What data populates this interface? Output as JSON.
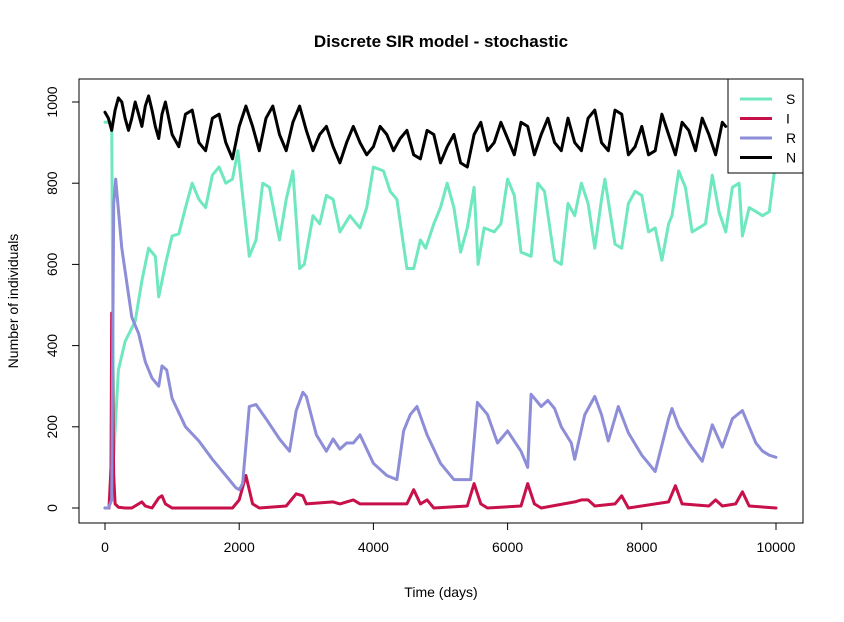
{
  "chart_data": {
    "type": "line",
    "title": "Discrete SIR model - stochastic",
    "xlabel": "Time (days)",
    "ylabel": "Number of individuals",
    "xlim": [
      0,
      10000
    ],
    "ylim": [
      0,
      1000
    ],
    "x_ticks": [
      "0",
      "2000",
      "4000",
      "6000",
      "8000",
      "10000"
    ],
    "y_ticks": [
      "0",
      "200",
      "400",
      "600",
      "800",
      "1000"
    ],
    "grid": false,
    "legend_position": "top-right",
    "series": [
      {
        "name": "S",
        "color": "#6FE8C0",
        "x": [
          0,
          100,
          130,
          200,
          300,
          450,
          550,
          650,
          750,
          800,
          900,
          1000,
          1100,
          1200,
          1300,
          1400,
          1500,
          1600,
          1700,
          1800,
          1900,
          1980,
          2050,
          2150,
          2250,
          2350,
          2450,
          2600,
          2700,
          2800,
          2900,
          2970,
          3100,
          3200,
          3300,
          3400,
          3500,
          3650,
          3800,
          3900,
          4000,
          4150,
          4250,
          4350,
          4500,
          4600,
          4700,
          4780,
          4900,
          5000,
          5100,
          5200,
          5300,
          5400,
          5500,
          5560,
          5650,
          5800,
          5900,
          6000,
          6100,
          6200,
          6350,
          6450,
          6550,
          6700,
          6800,
          6900,
          7000,
          7100,
          7200,
          7300,
          7400,
          7450,
          7600,
          7700,
          7800,
          7900,
          8000,
          8100,
          8200,
          8300,
          8400,
          8450,
          8550,
          8650,
          8750,
          8850,
          8950,
          9050,
          9150,
          9250,
          9350,
          9450,
          9500,
          9600,
          9700,
          9800,
          9900,
          10000
        ],
        "values": [
          950,
          950,
          130,
          340,
          410,
          460,
          560,
          640,
          620,
          520,
          600,
          670,
          675,
          740,
          800,
          760,
          740,
          820,
          840,
          800,
          810,
          880,
          770,
          620,
          660,
          800,
          790,
          660,
          760,
          830,
          590,
          600,
          720,
          700,
          770,
          760,
          680,
          720,
          690,
          740,
          840,
          830,
          780,
          760,
          590,
          590,
          660,
          640,
          700,
          740,
          800,
          740,
          630,
          690,
          790,
          600,
          690,
          680,
          700,
          810,
          770,
          630,
          620,
          800,
          780,
          610,
          600,
          750,
          720,
          800,
          750,
          640,
          760,
          810,
          650,
          640,
          750,
          780,
          770,
          680,
          690,
          610,
          700,
          720,
          830,
          790,
          680,
          690,
          700,
          820,
          730,
          680,
          790,
          800,
          670,
          740,
          730,
          720,
          730,
          860
        ]
      },
      {
        "name": "I",
        "color": "#C8104A",
        "x": [
          0,
          60,
          90,
          100,
          115,
          130,
          150,
          200,
          300,
          400,
          500,
          550,
          600,
          700,
          800,
          850,
          900,
          1000,
          1500,
          1900,
          2000,
          2100,
          2200,
          2300,
          2700,
          2850,
          2950,
          3000,
          3400,
          3500,
          3700,
          3800,
          4500,
          4600,
          4700,
          4800,
          4900,
          5400,
          5500,
          5600,
          5700,
          6200,
          6300,
          6400,
          6500,
          7000,
          7100,
          7200,
          7300,
          7600,
          7700,
          7800,
          8400,
          8500,
          8600,
          9000,
          9100,
          9200,
          9400,
          9500,
          9600,
          10000
        ],
        "values": [
          0,
          0,
          100,
          480,
          320,
          80,
          10,
          2,
          0,
          0,
          10,
          15,
          5,
          0,
          25,
          30,
          10,
          0,
          0,
          0,
          20,
          80,
          10,
          0,
          5,
          35,
          30,
          10,
          15,
          10,
          20,
          10,
          10,
          45,
          10,
          20,
          0,
          5,
          60,
          10,
          0,
          5,
          60,
          10,
          0,
          15,
          20,
          20,
          5,
          10,
          30,
          0,
          15,
          55,
          10,
          5,
          20,
          5,
          10,
          40,
          5,
          0
        ]
      },
      {
        "name": "R",
        "color": "#8E8ED8",
        "x": [
          0,
          50,
          100,
          130,
          160,
          250,
          400,
          500,
          600,
          700,
          800,
          850,
          920,
          1000,
          1200,
          1400,
          1600,
          1800,
          1950,
          2000,
          2050,
          2150,
          2250,
          2400,
          2600,
          2750,
          2850,
          2950,
          3000,
          3150,
          3300,
          3400,
          3500,
          3600,
          3700,
          3800,
          4000,
          4200,
          4350,
          4450,
          4550,
          4650,
          4800,
          5000,
          5200,
          5450,
          5550,
          5700,
          5850,
          6000,
          6200,
          6300,
          6350,
          6500,
          6600,
          6700,
          6800,
          6950,
          7000,
          7150,
          7300,
          7400,
          7500,
          7650,
          7800,
          8000,
          8200,
          8400,
          8450,
          8550,
          8700,
          8900,
          9050,
          9200,
          9350,
          9500,
          9600,
          9700,
          9800,
          9900,
          10000
        ],
        "values": [
          0,
          0,
          20,
          750,
          810,
          640,
          470,
          430,
          360,
          320,
          300,
          350,
          340,
          270,
          200,
          165,
          120,
          80,
          50,
          45,
          60,
          250,
          255,
          220,
          170,
          140,
          240,
          285,
          275,
          180,
          140,
          170,
          145,
          160,
          160,
          180,
          110,
          80,
          70,
          190,
          230,
          250,
          180,
          110,
          70,
          70,
          260,
          230,
          160,
          190,
          140,
          100,
          280,
          250,
          265,
          245,
          200,
          160,
          120,
          230,
          275,
          230,
          165,
          250,
          185,
          130,
          90,
          220,
          245,
          200,
          160,
          115,
          205,
          150,
          220,
          240,
          200,
          160,
          140,
          130,
          125
        ]
      },
      {
        "name": "N",
        "color": "#000000",
        "x": [
          0,
          50,
          100,
          150,
          200,
          250,
          300,
          350,
          400,
          450,
          500,
          550,
          600,
          650,
          700,
          750,
          800,
          850,
          900,
          950,
          1000,
          1100,
          1200,
          1300,
          1400,
          1500,
          1600,
          1700,
          1800,
          1900,
          2000,
          2100,
          2200,
          2300,
          2400,
          2500,
          2600,
          2700,
          2800,
          2900,
          3000,
          3100,
          3200,
          3300,
          3400,
          3500,
          3600,
          3700,
          3800,
          3900,
          4000,
          4100,
          4200,
          4300,
          4400,
          4500,
          4600,
          4700,
          4800,
          4900,
          5000,
          5100,
          5200,
          5300,
          5400,
          5500,
          5600,
          5700,
          5800,
          5900,
          6000,
          6100,
          6200,
          6300,
          6400,
          6500,
          6600,
          6700,
          6800,
          6900,
          7000,
          7100,
          7200,
          7300,
          7400,
          7500,
          7600,
          7700,
          7800,
          7900,
          8000,
          8100,
          8200,
          8300,
          8400,
          8500,
          8600,
          8700,
          8800,
          8900,
          9000,
          9100,
          9200,
          9250
        ],
        "values": [
          975,
          960,
          930,
          980,
          1010,
          1000,
          960,
          930,
          960,
          1000,
          970,
          940,
          990,
          1015,
          980,
          940,
          910,
          970,
          1000,
          960,
          920,
          890,
          970,
          980,
          900,
          880,
          960,
          970,
          900,
          860,
          940,
          990,
          940,
          880,
          960,
          990,
          920,
          880,
          950,
          990,
          930,
          880,
          920,
          940,
          890,
          850,
          900,
          940,
          900,
          870,
          890,
          940,
          920,
          880,
          910,
          930,
          870,
          860,
          930,
          920,
          850,
          890,
          920,
          850,
          840,
          920,
          950,
          880,
          900,
          950,
          910,
          870,
          950,
          940,
          870,
          920,
          960,
          900,
          880,
          960,
          900,
          880,
          960,
          980,
          900,
          880,
          980,
          970,
          870,
          890,
          940,
          870,
          880,
          970,
          920,
          870,
          950,
          930,
          880,
          960,
          920,
          870,
          950,
          940
        ]
      }
    ]
  }
}
